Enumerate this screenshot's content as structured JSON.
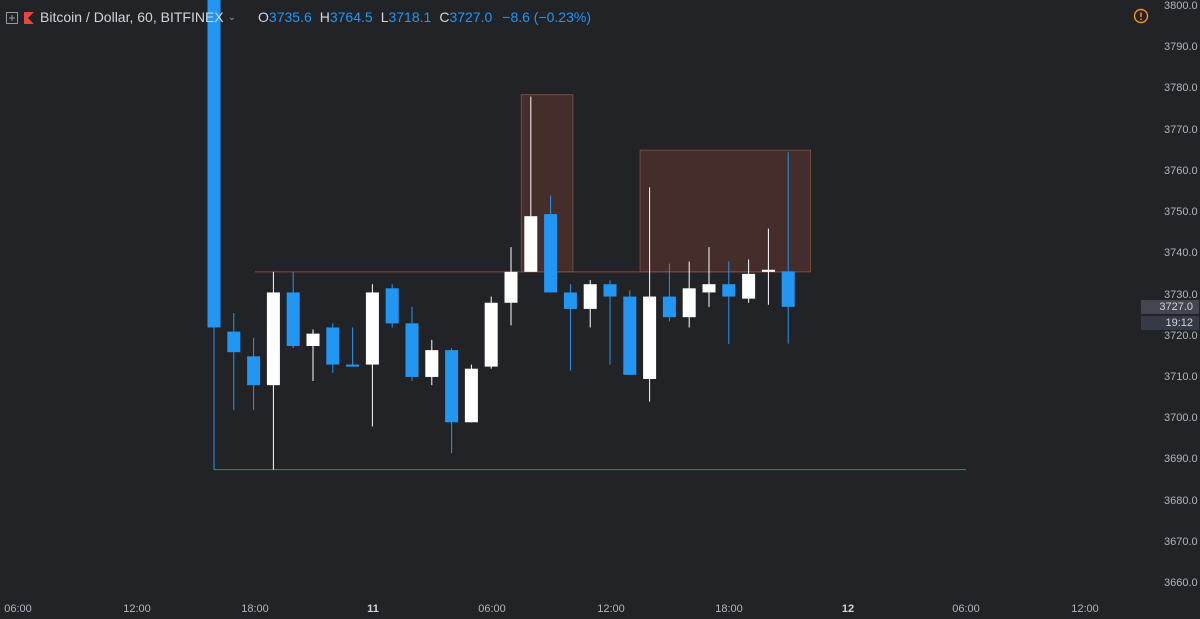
{
  "header": {
    "symbol": "Bitcoin / Dollar, 60, BITFINEX",
    "open_label": "O",
    "open": "3735.6",
    "high_label": "H",
    "high": "3764.5",
    "low_label": "L",
    "low": "3718.1",
    "close_label": "C",
    "close": "3727.0",
    "change": "−8.6 (−0.23%)"
  },
  "icons": {
    "expand": "expand-square-icon",
    "exchange": "bitfinex-flag-icon",
    "alert": "alert-circle-icon"
  },
  "colors": {
    "background": "#222327",
    "bear": "#2196f3",
    "bull": "#ffffff",
    "zone_fill": "#4a2f2b",
    "zone_border": "#7a4a3e",
    "resistance": "#8a4a3d",
    "support": "#3a8f5a",
    "accent_orange": "#f7931a"
  },
  "price_axis": {
    "labels": [
      "3800.0",
      "3790.0",
      "3780.0",
      "3770.0",
      "3760.0",
      "3750.0",
      "3740.0",
      "3730.0",
      "3720.0",
      "3710.0",
      "3700.0",
      "3690.0",
      "3680.0",
      "3670.0",
      "3660.0"
    ],
    "current_price": "3727.0",
    "countdown": "19:12"
  },
  "time_axis": {
    "labels": [
      "06:00",
      "12:00",
      "18:00",
      "11",
      "06:00",
      "12:00",
      "18:00",
      "12",
      "06:00",
      "12:00"
    ],
    "bold": [
      false,
      false,
      false,
      true,
      false,
      false,
      false,
      true,
      false,
      false
    ]
  },
  "chart_data": {
    "type": "candlestick",
    "symbol": "Bitcoin / Dollar",
    "interval": "60",
    "exchange": "BITFINEX",
    "ylim": [
      3656,
      3800
    ],
    "candles": [
      {
        "o": 3820,
        "h": 3820,
        "l": 3687.5,
        "c": 3722.0
      },
      {
        "o": 3721.0,
        "h": 3725.5,
        "l": 3702.0,
        "c": 3716.0
      },
      {
        "o": 3715.0,
        "h": 3719.5,
        "l": 3702.0,
        "c": 3708.0
      },
      {
        "o": 3708.0,
        "h": 3735.5,
        "l": 3687.5,
        "c": 3730.5
      },
      {
        "o": 3730.5,
        "h": 3735.5,
        "l": 3717.0,
        "c": 3717.5
      },
      {
        "o": 3717.5,
        "h": 3721.5,
        "l": 3709.0,
        "c": 3720.5
      },
      {
        "o": 3722.0,
        "h": 3723.0,
        "l": 3711.0,
        "c": 3713.0
      },
      {
        "o": 3713.0,
        "h": 3722.0,
        "l": 3713.0,
        "c": 3712.5
      },
      {
        "o": 3713.0,
        "h": 3732.5,
        "l": 3698.0,
        "c": 3730.5
      },
      {
        "o": 3731.5,
        "h": 3732.5,
        "l": 3722.0,
        "c": 3723.0
      },
      {
        "o": 3723.0,
        "h": 3727.0,
        "l": 3709.0,
        "c": 3710.0
      },
      {
        "o": 3710.0,
        "h": 3719.0,
        "l": 3708.0,
        "c": 3716.5
      },
      {
        "o": 3716.5,
        "h": 3717.0,
        "l": 3691.5,
        "c": 3699.0
      },
      {
        "o": 3699.0,
        "h": 3713.0,
        "l": 3699.0,
        "c": 3712.0
      },
      {
        "o": 3712.5,
        "h": 3729.5,
        "l": 3712.0,
        "c": 3728.0
      },
      {
        "o": 3728.0,
        "h": 3741.5,
        "l": 3722.5,
        "c": 3735.5
      },
      {
        "o": 3735.5,
        "h": 3778.0,
        "l": 3735.5,
        "c": 3749.0
      },
      {
        "o": 3749.5,
        "h": 3754.0,
        "l": 3730.5,
        "c": 3730.5
      },
      {
        "o": 3730.5,
        "h": 3732.5,
        "l": 3711.5,
        "c": 3726.5
      },
      {
        "o": 3726.5,
        "h": 3733.5,
        "l": 3722.0,
        "c": 3732.5
      },
      {
        "o": 3732.5,
        "h": 3733.5,
        "l": 3713.0,
        "c": 3729.5
      },
      {
        "o": 3729.5,
        "h": 3731.0,
        "l": 3710.5,
        "c": 3710.5
      },
      {
        "o": 3709.5,
        "h": 3756.0,
        "l": 3704.0,
        "c": 3729.5
      },
      {
        "o": 3729.5,
        "h": 3737.5,
        "l": 3723.5,
        "c": 3724.5
      },
      {
        "o": 3724.5,
        "h": 3738.0,
        "l": 3722.0,
        "c": 3731.5
      },
      {
        "o": 3730.5,
        "h": 3741.5,
        "l": 3727.0,
        "c": 3732.5
      },
      {
        "o": 3732.5,
        "h": 3738.0,
        "l": 3718.0,
        "c": 3729.5
      },
      {
        "o": 3729.0,
        "h": 3738.5,
        "l": 3728.0,
        "c": 3735.0
      },
      {
        "o": 3735.5,
        "h": 3746.0,
        "l": 3727.5,
        "c": 3736.0
      },
      {
        "o": 3735.6,
        "h": 3764.5,
        "l": 3718.1,
        "c": 3727.0
      }
    ],
    "zones": [
      {
        "from_index": 16,
        "to_index": 18,
        "top": 3778.5,
        "bottom": 3735.5
      },
      {
        "from_index": 22,
        "to_index": 30,
        "top": 3765.0,
        "bottom": 3735.5
      }
    ],
    "horizontal_lines": [
      {
        "price": 3735.5,
        "from_index": 0,
        "to_index": 30,
        "role": "resistance"
      },
      {
        "price": 3687.5,
        "from_index": 0,
        "to_index": 40,
        "role": "support"
      }
    ]
  }
}
